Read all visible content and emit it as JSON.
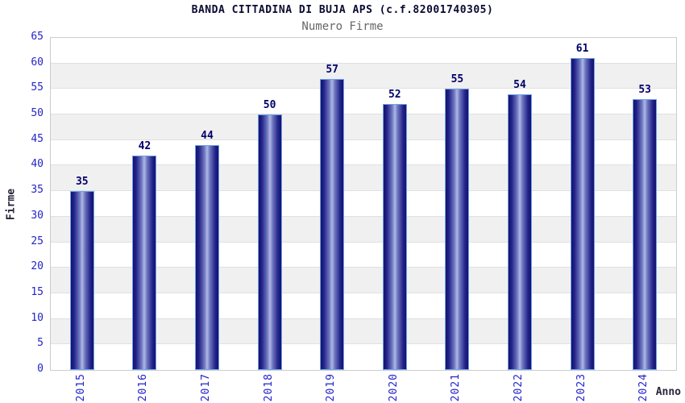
{
  "chart": {
    "title": "BANDA CITTADINA DI BUJA APS (c.f.82001740305)",
    "subtitle": "Numero Firme",
    "ylabel": "Firme",
    "xlabel": "Anno"
  },
  "chart_data": {
    "type": "bar",
    "title": "BANDA CITTADINA DI BUJA APS (c.f.82001740305)",
    "subtitle": "Numero Firme",
    "xlabel": "Anno",
    "ylabel": "Firme",
    "categories": [
      "2015",
      "2016",
      "2017",
      "2018",
      "2019",
      "2020",
      "2021",
      "2022",
      "2023",
      "2024"
    ],
    "values": [
      35,
      42,
      44,
      50,
      57,
      52,
      55,
      54,
      61,
      53
    ],
    "ylim": [
      0,
      65
    ],
    "ytick_step": 5,
    "grid": true,
    "legend": "none",
    "bar_labels_shown": true,
    "colors": {
      "title_color": "#0a0a32",
      "subtitle_color": "#666666",
      "axis_title_color": "#26263a",
      "tick_label": "#2424c8",
      "value_label": "#00006b",
      "bar_dark": "#13136b",
      "bar_light": "#b0b8e6",
      "bar_border": "#6ea3ea",
      "grid_line": "#e0e0e0",
      "band_gray": "#f0f0f0",
      "plot_border": "#cccccc"
    }
  }
}
